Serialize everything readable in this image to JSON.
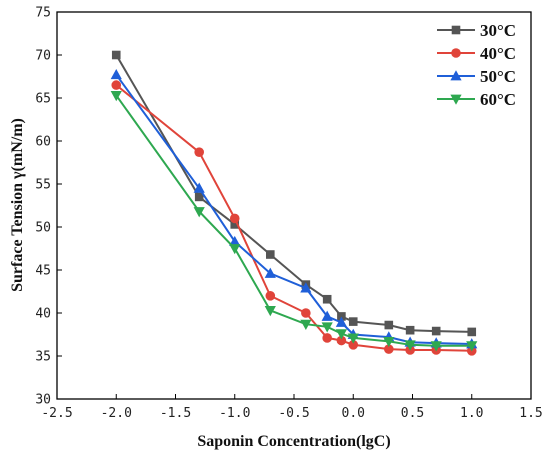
{
  "chart_data": {
    "type": "line",
    "xlabel": "Saponin Concentration(lgC)",
    "ylabel": "Surface Tension γ(mN/m)",
    "xlim": [
      -2.5,
      1.5
    ],
    "ylim": [
      30,
      75
    ],
    "xticks": [
      "-2.5",
      "-2.0",
      "-1.5",
      "-1.0",
      "-0.5",
      "0.0",
      "0.5",
      "1.0",
      "1.5"
    ],
    "yticks": [
      "30",
      "35",
      "40",
      "45",
      "50",
      "55",
      "60",
      "65",
      "70",
      "75"
    ],
    "grid": false,
    "legend_position": "top-right",
    "series": [
      {
        "name": "30°C",
        "color": "#555555",
        "marker": "square",
        "x": [
          -2.0,
          -1.3,
          -1.0,
          -0.7,
          -0.4,
          -0.22,
          -0.1,
          0.0,
          0.3,
          0.48,
          0.7,
          1.0
        ],
        "y": [
          70.0,
          53.5,
          50.3,
          46.8,
          43.3,
          41.6,
          39.6,
          39.0,
          38.6,
          38.0,
          37.9,
          37.8
        ]
      },
      {
        "name": "40°C",
        "color": "#e0443a",
        "marker": "circle",
        "x": [
          -2.0,
          -1.3,
          -1.0,
          -0.7,
          -0.4,
          -0.22,
          -0.1,
          0.0,
          0.3,
          0.48,
          0.7,
          1.0
        ],
        "y": [
          66.5,
          58.7,
          51.0,
          42.0,
          40.0,
          37.1,
          36.8,
          36.3,
          35.8,
          35.7,
          35.7,
          35.6
        ]
      },
      {
        "name": "50°C",
        "color": "#1f5fd8",
        "marker": "triangle-up",
        "x": [
          -2.0,
          -1.3,
          -1.0,
          -0.7,
          -0.4,
          -0.22,
          -0.1,
          0.0,
          0.3,
          0.48,
          0.7,
          1.0
        ],
        "y": [
          67.7,
          54.5,
          48.3,
          44.6,
          42.9,
          39.6,
          38.9,
          37.5,
          37.2,
          36.6,
          36.5,
          36.4
        ]
      },
      {
        "name": "60°C",
        "color": "#2ea850",
        "marker": "triangle-down",
        "x": [
          -2.0,
          -1.3,
          -1.0,
          -0.7,
          -0.4,
          -0.22,
          -0.1,
          0.0,
          0.3,
          0.48,
          0.7,
          1.0
        ],
        "y": [
          65.3,
          51.8,
          47.5,
          40.3,
          38.7,
          38.4,
          37.6,
          37.1,
          36.7,
          36.3,
          36.2,
          36.2
        ]
      }
    ]
  }
}
